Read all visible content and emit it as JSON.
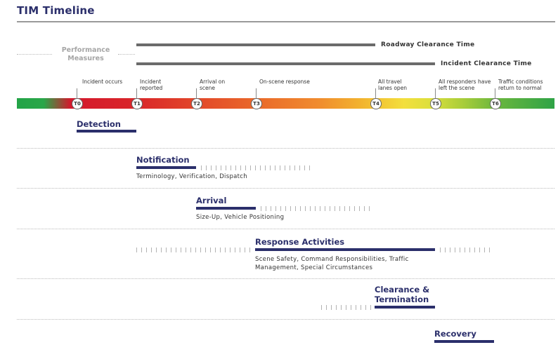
{
  "title": "TIM Timeline",
  "performance_measures_label": "Performance Measures",
  "measures": [
    {
      "label": "Roadway Clearance Time"
    },
    {
      "label": "Incident Clearance Time"
    }
  ],
  "events": [
    {
      "marker": "T0",
      "label": "Incident occurs"
    },
    {
      "marker": "T1",
      "label": "Incident reported"
    },
    {
      "marker": "T2",
      "label": "Arrival on scene"
    },
    {
      "marker": "T3",
      "label": "On-scene response"
    },
    {
      "marker": "T4",
      "label": "All travel lanes open"
    },
    {
      "marker": "T5",
      "label": "All responders have left the scene"
    },
    {
      "marker": "T6",
      "label": "Traffic conditions return to normal"
    }
  ],
  "phases": [
    {
      "name": "Detection",
      "description": ""
    },
    {
      "name": "Notification",
      "description": "Terminology, Verification, Dispatch"
    },
    {
      "name": "Arrival",
      "description": "Size-Up, Vehicle Positioning"
    },
    {
      "name": "Response Activities",
      "description": "Scene Safety, Command Responsibilities, Traffic Management, Special Circumstances"
    },
    {
      "name": "Clearance & Termination",
      "description": ""
    },
    {
      "name": "Recovery",
      "description": ""
    }
  ]
}
